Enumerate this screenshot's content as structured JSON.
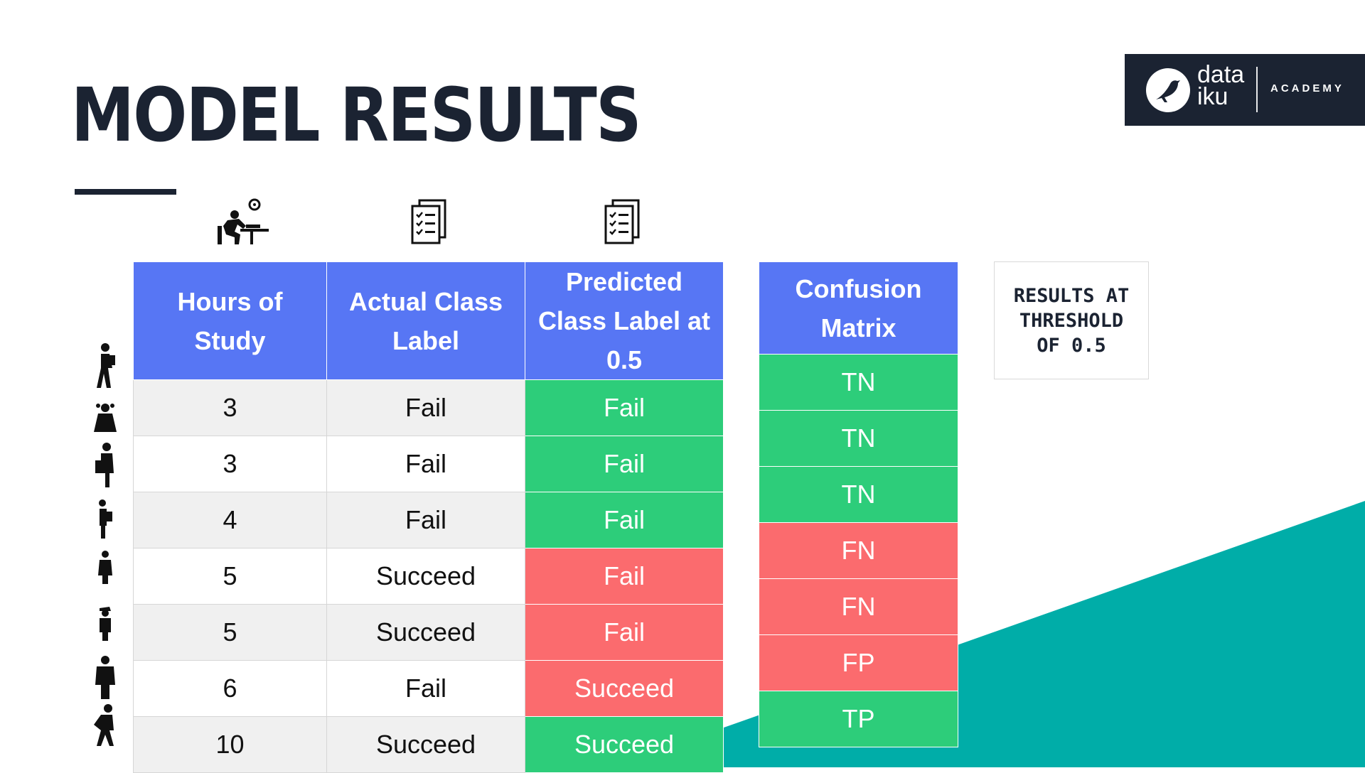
{
  "colors": {
    "navy": "#1b2332",
    "header_blue": "#5776f4",
    "green": "#2dcd7a",
    "red": "#fb6b6e",
    "teal": "#00ada8"
  },
  "title": "MODEL RESULTS",
  "logo": {
    "word_line1": "data",
    "word_line2": "iku",
    "tagline": "ACADEMY"
  },
  "icons": {
    "col1": "student-at-desk-icon",
    "col2": "checklist-documents-icon",
    "col3": "checklist-documents-icon"
  },
  "table": {
    "headers": [
      "Hours of Study",
      "Actual Class Label",
      "Predicted Class Label at 0.5"
    ],
    "rows": [
      {
        "hours": "3",
        "actual": "Fail",
        "predicted": "Fail",
        "predicted_color": "green"
      },
      {
        "hours": "3",
        "actual": "Fail",
        "predicted": "Fail",
        "predicted_color": "green"
      },
      {
        "hours": "4",
        "actual": "Fail",
        "predicted": "Fail",
        "predicted_color": "green"
      },
      {
        "hours": "5",
        "actual": "Succeed",
        "predicted": "Fail",
        "predicted_color": "red"
      },
      {
        "hours": "5",
        "actual": "Succeed",
        "predicted": "Fail",
        "predicted_color": "red"
      },
      {
        "hours": "6",
        "actual": "Fail",
        "predicted": "Succeed",
        "predicted_color": "red"
      },
      {
        "hours": "10",
        "actual": "Succeed",
        "predicted": "Succeed",
        "predicted_color": "green"
      }
    ]
  },
  "confusion": {
    "header": "Confusion Matrix",
    "rows": [
      {
        "label": "TN",
        "color": "green"
      },
      {
        "label": "TN",
        "color": "green"
      },
      {
        "label": "TN",
        "color": "green"
      },
      {
        "label": "FN",
        "color": "red"
      },
      {
        "label": "FN",
        "color": "red"
      },
      {
        "label": "FP",
        "color": "red"
      },
      {
        "label": "TP",
        "color": "green"
      }
    ]
  },
  "people_icons": [
    "student-hiker-icon",
    "student-girl-icon",
    "student-with-bag-icon",
    "student-with-backpack-icon",
    "student-child-icon",
    "student-cap-icon",
    "student-backpack-front-icon",
    "student-running-icon"
  ],
  "threshold_box": {
    "text": "RESULTS AT\nTHRESHOLD\nOF 0.5"
  }
}
